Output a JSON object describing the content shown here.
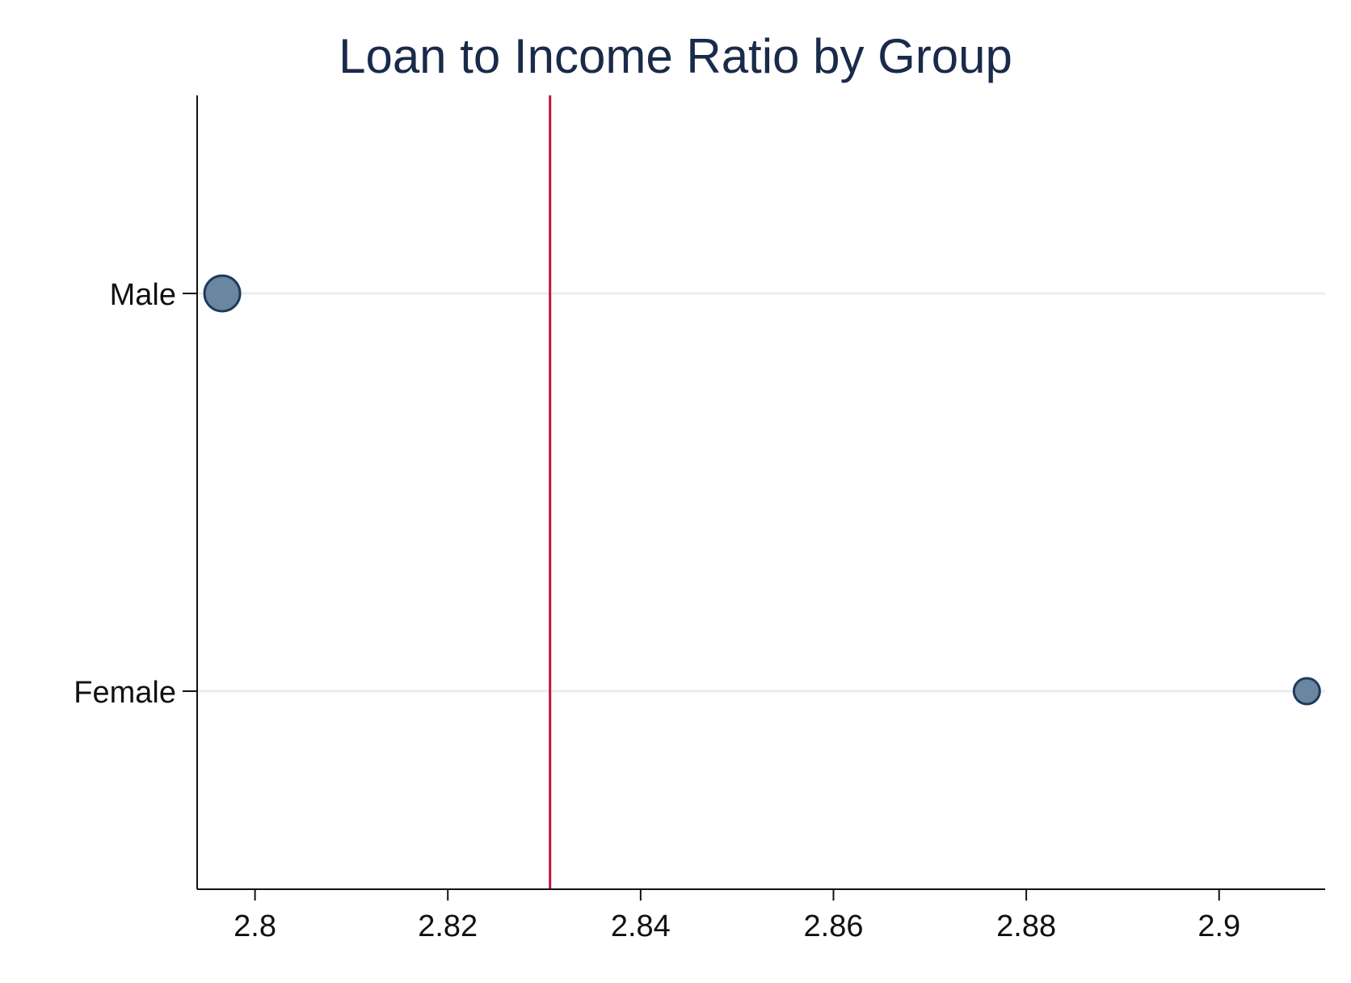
{
  "chart_data": {
    "type": "scatter",
    "title": "Loan to Income Ratio by Group",
    "xlabel": "",
    "ylabel": "",
    "categories": [
      "Male",
      "Female"
    ],
    "values": [
      2.7966,
      2.9091
    ],
    "marker_size": [
      3,
      2
    ],
    "reference_line": 2.8306,
    "xlim": [
      2.794,
      2.911
    ],
    "xticks": [
      2.8,
      2.82,
      2.84,
      2.86,
      2.88,
      2.9
    ],
    "xtick_labels": [
      "2.8",
      "2.82",
      "2.84",
      "2.86",
      "2.88",
      "2.9"
    ],
    "grid": "horizontal",
    "legend": "none",
    "colors": {
      "marker_fill": "#6b86a0",
      "marker_edge": "#1f3a5c",
      "reference_line": "#c0143c",
      "gridline": "#e6eeef",
      "axis": "#111111",
      "title": "#1a2a4a"
    }
  }
}
